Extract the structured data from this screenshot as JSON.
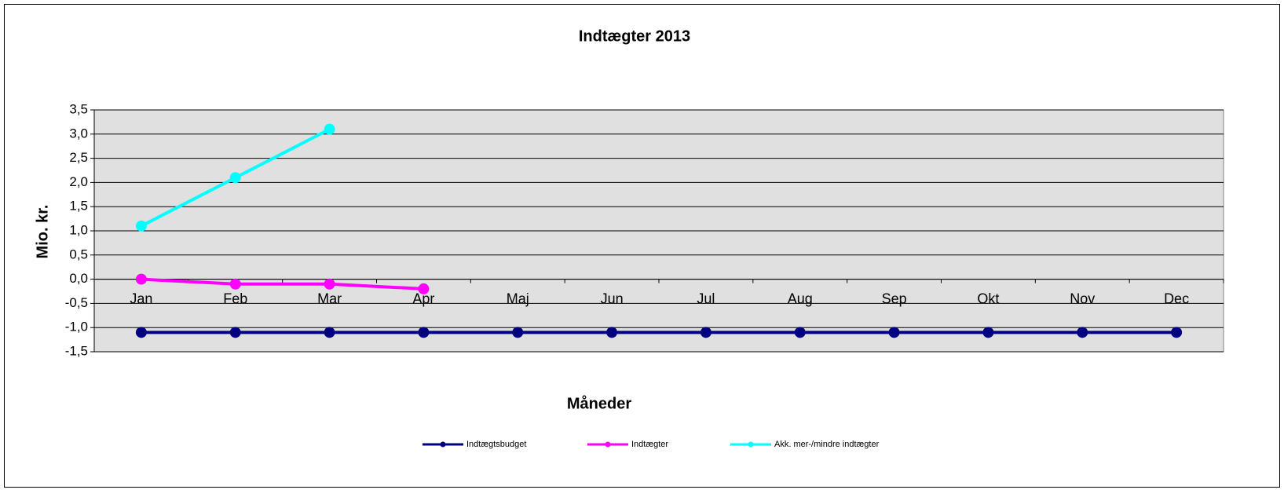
{
  "chart_data": {
    "type": "line",
    "title": "Indtægter 2013",
    "x_label": "Måneder",
    "y_label": "Mio. kr.",
    "categories": [
      "Jan",
      "Feb",
      "Mar",
      "Apr",
      "Maj",
      "Jun",
      "Jul",
      "Aug",
      "Sep",
      "Okt",
      "Nov",
      "Dec"
    ],
    "series": [
      {
        "name": "Indtægtsbudget",
        "color": "#000080",
        "values": [
          -1.1,
          -1.1,
          -1.1,
          -1.1,
          -1.1,
          -1.1,
          -1.1,
          -1.1,
          -1.1,
          -1.1,
          -1.1,
          -1.1
        ]
      },
      {
        "name": "Indtægter",
        "color": "#ff00ff",
        "values": [
          0.0,
          -0.1,
          -0.1,
          -0.2,
          null,
          null,
          null,
          null,
          null,
          null,
          null,
          null
        ]
      },
      {
        "name": "Akk. mer-/mindre indtægter",
        "color": "#00ffff",
        "values": [
          1.1,
          2.1,
          3.1,
          null,
          null,
          null,
          null,
          null,
          null,
          null,
          null,
          null
        ]
      }
    ],
    "ylim": [
      -1.5,
      3.5
    ],
    "yticks": [
      {
        "value": 3.5,
        "label": "3,5"
      },
      {
        "value": 3.0,
        "label": "3,0"
      },
      {
        "value": 2.5,
        "label": "2,5"
      },
      {
        "value": 2.0,
        "label": "2,0"
      },
      {
        "value": 1.5,
        "label": "1,5"
      },
      {
        "value": 1.0,
        "label": "1,0"
      },
      {
        "value": 0.5,
        "label": "0,5"
      },
      {
        "value": 0.0,
        "label": "0,0"
      },
      {
        "value": -0.5,
        "label": "-0,5"
      },
      {
        "value": -1.0,
        "label": "-1,0"
      },
      {
        "value": -1.5,
        "label": "-1,5"
      }
    ],
    "grid": true,
    "legend": "bottom",
    "plot_background": "#e0e0e0"
  }
}
